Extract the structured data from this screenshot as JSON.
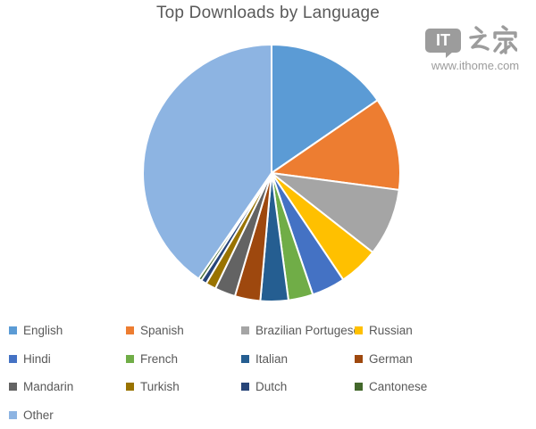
{
  "chart_data": {
    "type": "pie",
    "title": "Top Downloads by Language",
    "categories": [
      "English",
      "Spanish",
      "Brazilian Portugese",
      "Russian",
      "Hindi",
      "French",
      "Italian",
      "German",
      "Mandarin",
      "Turkish",
      "Dutch",
      "Cantonese",
      "Other"
    ],
    "values": [
      15.4,
      11.7,
      8.5,
      5.0,
      4.2,
      3.1,
      3.5,
      3.2,
      2.6,
      1.3,
      0.7,
      0.4,
      40.4
    ],
    "values_note": "percent of pie, estimated from slice arc angles; no numeric labels shown in image",
    "colors": [
      "#5B9BD5",
      "#ED7D31",
      "#A5A5A5",
      "#FFC000",
      "#4472C4",
      "#70AD47",
      "#255E91",
      "#9E480E",
      "#636363",
      "#997300",
      "#264478",
      "#43682B",
      "#8DB4E2"
    ],
    "start_angle_deg": 0,
    "direction": "clockwise",
    "slice_border_color": "#FFFFFF",
    "legend_position": "bottom",
    "legend_columns": 4
  },
  "watermark": {
    "logo_text": "IT",
    "logo_cjk": "之家",
    "url": "www.ithome.com",
    "color": "#9C9C9C"
  }
}
